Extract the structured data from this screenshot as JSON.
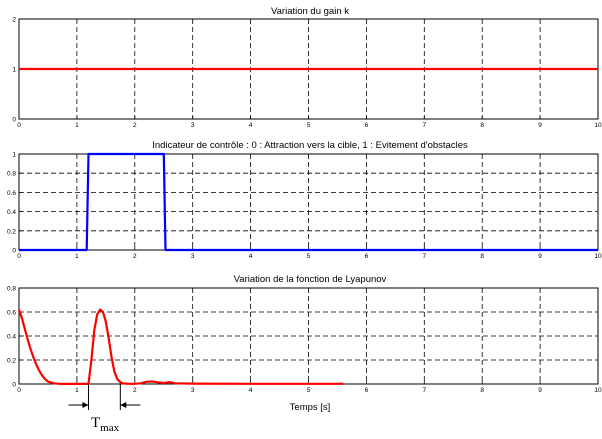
{
  "chart_data": [
    {
      "type": "line",
      "title": "Variation du gain k",
      "xlabel": "",
      "ylabel": "",
      "xlim": [
        0,
        10
      ],
      "ylim": [
        0,
        2
      ],
      "x_ticks": [
        "0",
        "1",
        "2",
        "3",
        "4",
        "5",
        "6",
        "7",
        "8",
        "9",
        "10"
      ],
      "y_ticks": [
        "0",
        "1",
        "2"
      ],
      "grid": true,
      "series": [
        {
          "color": "#ff0000",
          "x": [
            0,
            10
          ],
          "y": [
            1,
            1
          ]
        }
      ]
    },
    {
      "type": "line",
      "title": "Indicateur de contrôle : 0 : Attraction vers la cible, 1 : Evitement d'obstacles",
      "xlabel": "",
      "ylabel": "",
      "xlim": [
        0,
        10
      ],
      "ylim": [
        0,
        1
      ],
      "x_ticks": [
        "0",
        "1",
        "2",
        "3",
        "4",
        "5",
        "6",
        "7",
        "8",
        "9",
        "10"
      ],
      "y_ticks": [
        "0",
        "0.2",
        "0.4",
        "0.6",
        "0.8",
        "1"
      ],
      "grid": true,
      "series": [
        {
          "color": "#0000ff",
          "x": [
            0,
            1.17,
            1.2,
            2.5,
            2.53,
            10
          ],
          "y": [
            0,
            0,
            1,
            1,
            0,
            0
          ]
        }
      ]
    },
    {
      "type": "line",
      "title": "Variation de la fonction de Lyapunov",
      "xlabel": "Temps [s]",
      "ylabel": "",
      "xlim": [
        0,
        10
      ],
      "ylim": [
        0,
        0.8
      ],
      "x_ticks": [
        "0",
        "1",
        "2",
        "3",
        "4",
        "5",
        "6",
        "7",
        "8",
        "9",
        "10"
      ],
      "y_ticks": [
        "0",
        "0.2",
        "0.4",
        "0.6",
        "0.8"
      ],
      "grid": true,
      "series": [
        {
          "color": "#ff0000",
          "x": [
            0,
            0.05,
            0.1,
            0.15,
            0.2,
            0.25,
            0.3,
            0.35,
            0.4,
            0.45,
            0.5,
            0.6,
            0.7,
            0.8,
            1.0,
            1.2,
            1.25,
            1.3,
            1.35,
            1.4,
            1.45,
            1.5,
            1.55,
            1.6,
            1.65,
            1.7,
            1.75,
            1.8,
            1.9,
            2.0,
            2.1,
            2.2,
            2.3,
            2.4,
            2.5,
            2.6,
            2.7,
            3.0,
            4.0,
            5.0,
            5.6
          ],
          "y": [
            0.62,
            0.55,
            0.46,
            0.37,
            0.29,
            0.22,
            0.16,
            0.11,
            0.07,
            0.04,
            0.02,
            0.006,
            0.002,
            0.001,
            0.001,
            0.001,
            0.2,
            0.45,
            0.58,
            0.62,
            0.6,
            0.52,
            0.38,
            0.22,
            0.1,
            0.04,
            0.015,
            0.005,
            0.002,
            0.002,
            0.006,
            0.018,
            0.022,
            0.014,
            0.008,
            0.016,
            0.006,
            0.003,
            0.002,
            0.002,
            0.002
          ]
        }
      ]
    }
  ],
  "annotation": {
    "label": "T",
    "subscript": "max"
  }
}
